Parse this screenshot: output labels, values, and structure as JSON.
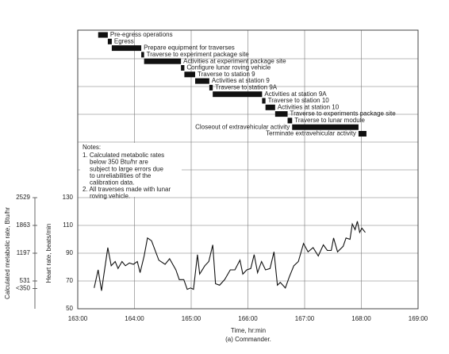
{
  "chart_data": [
    {
      "type": "gantt",
      "xlim": [
        163,
        169
      ],
      "color": "#111",
      "tasks": [
        {
          "label": "Pre-egress operations",
          "start": 163.36,
          "end": 163.53
        },
        {
          "label": "Egress",
          "start": 163.53,
          "end": 163.6
        },
        {
          "label": "Prepare equipment for traverses",
          "start": 163.6,
          "end": 164.12
        },
        {
          "label": "Traverse to experiment package site",
          "start": 164.12,
          "end": 164.17
        },
        {
          "label": "Activities at experiment package site",
          "start": 164.17,
          "end": 164.82
        },
        {
          "label": "Configure lunar roving vehicle",
          "start": 164.82,
          "end": 164.88
        },
        {
          "label": "Traverse to station 9",
          "start": 164.88,
          "end": 165.07
        },
        {
          "label": "Activities at station 9",
          "start": 165.07,
          "end": 165.32
        },
        {
          "label": "Traverse to station 9A",
          "start": 165.32,
          "end": 165.38
        },
        {
          "label": "Activities at station 9A",
          "start": 165.38,
          "end": 166.25
        },
        {
          "label": "Traverse to station 10",
          "start": 166.25,
          "end": 166.31
        },
        {
          "label": "Activities at station 10",
          "start": 166.31,
          "end": 166.48
        },
        {
          "label": "Traverse to experiments package site",
          "start": 166.48,
          "end": 166.7
        },
        {
          "label": "Traverse to lunar module",
          "start": 166.7,
          "end": 166.78
        },
        {
          "label": "Closeout of extravehicular activity",
          "start": 166.78,
          "end": 167.95
        },
        {
          "label": "Terminate extravehicular activity",
          "start": 167.95,
          "end": 168.09
        }
      ]
    },
    {
      "type": "line",
      "color": "#111",
      "xlabel": "Time, hr:min",
      "caption": "(a) Commander.",
      "ylabel": "Heart rate, beats/min",
      "y2label": "Calculated metabolic rate, Btu/hr",
      "xlim": [
        163,
        169
      ],
      "xticks": [
        {
          "value": 163,
          "label": "163:00"
        },
        {
          "value": 164,
          "label": "164:00"
        },
        {
          "value": 165,
          "label": "165:00"
        },
        {
          "value": 166,
          "label": "166:00"
        },
        {
          "value": 167,
          "label": "167:00"
        },
        {
          "value": 168,
          "label": "168:00"
        },
        {
          "value": 169,
          "label": "169:00"
        }
      ],
      "ylim": [
        50,
        130
      ],
      "yticks": [
        50,
        70,
        90,
        110,
        130
      ],
      "y2lim": [
        -135,
        2529
      ],
      "y2ticks": [
        2529,
        1863,
        1197,
        531,
        {
          "value": 350,
          "label": "<350"
        }
      ],
      "x": [
        163.29,
        163.36,
        163.42,
        163.53,
        163.59,
        163.66,
        163.71,
        163.78,
        163.84,
        163.91,
        163.98,
        164.05,
        164.1,
        164.17,
        164.23,
        164.3,
        164.43,
        164.54,
        164.62,
        164.73,
        164.79,
        164.87,
        164.93,
        164.99,
        165.04,
        165.11,
        165.15,
        165.24,
        165.31,
        165.38,
        165.43,
        165.5,
        165.59,
        165.69,
        165.77,
        165.86,
        165.91,
        165.98,
        166.05,
        166.11,
        166.17,
        166.24,
        166.31,
        166.39,
        166.46,
        166.52,
        166.57,
        166.66,
        166.73,
        166.81,
        166.89,
        166.98,
        167.06,
        167.15,
        167.24,
        167.33,
        167.4,
        167.47,
        167.51,
        167.58,
        167.68,
        167.73,
        167.8,
        167.84,
        167.89,
        167.93,
        167.97,
        168.01,
        168.07
      ],
      "values": [
        65,
        78,
        63,
        94,
        81,
        84,
        79,
        84,
        81,
        83,
        82,
        84,
        76,
        88,
        101,
        99,
        85,
        82,
        86,
        78,
        71,
        71,
        64,
        65,
        64,
        89,
        75,
        81,
        84,
        96,
        68,
        67,
        71,
        78,
        78,
        85,
        75,
        78,
        79,
        89,
        76,
        84,
        78,
        79,
        91,
        67,
        69,
        65,
        73,
        81,
        84,
        97,
        91,
        94,
        88,
        96,
        92,
        92,
        101,
        91,
        95,
        101,
        100,
        111,
        107,
        113,
        105,
        108,
        105
      ]
    }
  ],
  "notes": {
    "title": "Notes:",
    "lines": [
      "1. Calculated metabolic rates",
      "below 350 Btu/hr are",
      "subject to large errors due",
      "to unreliabilities of the",
      "calibration data.",
      "2. All traverses made with lunar",
      "roving vehicle."
    ]
  }
}
